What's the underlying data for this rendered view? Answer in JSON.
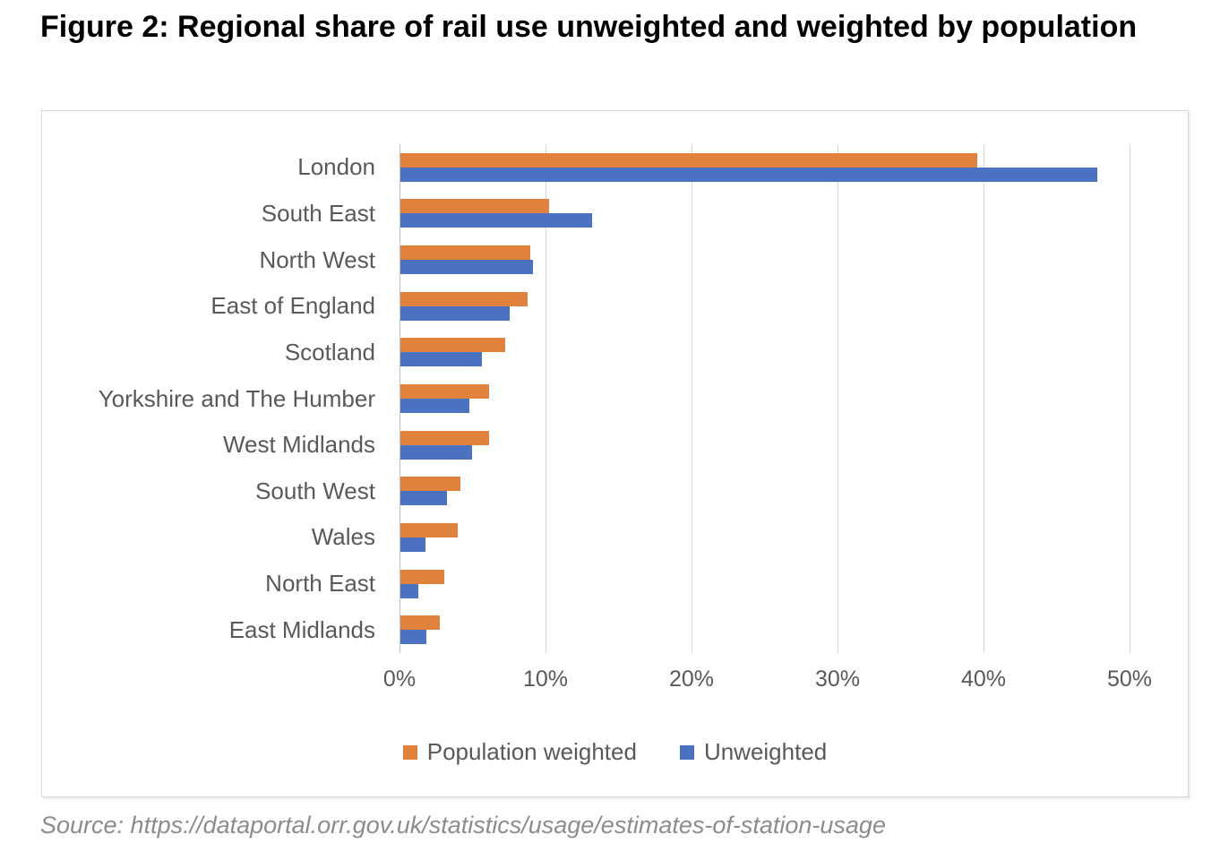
{
  "page": {
    "title": "Figure 2: Regional share of rail use unweighted and weighted by population",
    "source": "Source: https://dataportal.orr.gov.uk/statistics/usage/estimates-of-station-usage"
  },
  "colors": {
    "population_weighted": "#E0813D",
    "unweighted": "#4A72C0",
    "gridline": "#D6D6D6",
    "axis_line": "#BFBFBF",
    "label_text": "#595959",
    "source_text": "#8C8C8C",
    "chart_border": "#D9D9D9"
  },
  "chart_data": {
    "type": "bar",
    "orientation": "horizontal",
    "title": "",
    "xlabel": "",
    "ylabel": "",
    "categories": [
      "London",
      "South East",
      "North West",
      "East of England",
      "Scotland",
      "Yorkshire and The Humber",
      "West Midlands",
      "South West",
      "Wales",
      "North East",
      "East Midlands"
    ],
    "series": [
      {
        "name": "Population weighted",
        "color": "#E0813D",
        "values": [
          39.5,
          10.2,
          8.9,
          8.7,
          7.2,
          6.1,
          6.1,
          4.1,
          3.9,
          3.0,
          2.7
        ]
      },
      {
        "name": "Unweighted",
        "color": "#4A72C0",
        "values": [
          47.7,
          13.1,
          9.1,
          7.5,
          5.6,
          4.7,
          4.9,
          3.2,
          1.7,
          1.2,
          1.8
        ]
      }
    ],
    "x_ticks": [
      {
        "value": 0,
        "label": "0%"
      },
      {
        "value": 10,
        "label": "10%"
      },
      {
        "value": 20,
        "label": "20%"
      },
      {
        "value": 30,
        "label": "30%"
      },
      {
        "value": 40,
        "label": "40%"
      },
      {
        "value": 50,
        "label": "50%"
      }
    ],
    "xlim": [
      0,
      50
    ],
    "grid": true,
    "legend_position": "bottom"
  }
}
